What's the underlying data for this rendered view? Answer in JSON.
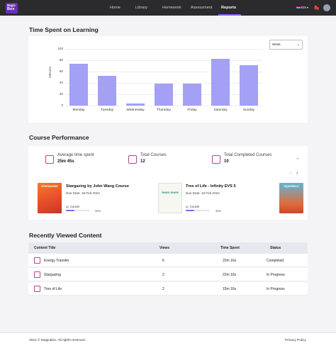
{
  "brand": {
    "logo_text_1": "Magic",
    "logo_text_2": "Box"
  },
  "nav": {
    "items": [
      {
        "label": "Home"
      },
      {
        "label": "Library"
      },
      {
        "label": "Homework"
      },
      {
        "label": "Assessment"
      },
      {
        "label": "Reports",
        "active": true
      }
    ],
    "language": "EN",
    "icons": {
      "flag": "uk-flag-icon",
      "lang_chevron": "chevron-down-icon",
      "bell": "bell-icon",
      "avatar": "avatar"
    }
  },
  "time_spent": {
    "section_title": "Time Spent on Learning",
    "period_select": "Week",
    "chart_data": {
      "type": "bar",
      "categories": [
        "Monday",
        "Tuesday",
        "Wednesday",
        "Thursday",
        "Friday",
        "Saturday",
        "Sunday"
      ],
      "values": [
        74,
        52,
        4,
        39,
        39,
        83,
        71
      ],
      "ylabel": "Minutes",
      "ylim": [
        0,
        100
      ],
      "yticks": [
        "0",
        "20",
        "40",
        "60",
        "80",
        "100"
      ],
      "bar_color": "#a3a0f5",
      "grid": true
    }
  },
  "course_performance": {
    "section_title": "Course Performance",
    "stats": [
      {
        "label": "Average time spent",
        "value": "25m 45s"
      },
      {
        "label": "Total Courses",
        "value": "12"
      },
      {
        "label": "Total Completed Courses",
        "value": "10"
      }
    ],
    "courses": [
      {
        "title": "Stargazing by John Wang Course",
        "due": "Due Date: 18 Feb 2022",
        "tag": "Course",
        "progress_pct": "35%",
        "progress": 0.35,
        "cover_text": "STARGAZING"
      },
      {
        "title": "Tree of Life - Infinity EVS 5",
        "due": "Due Date: 18 Feb 2022",
        "tag": "Course",
        "progress_pct": "35%",
        "progress": 0.35,
        "cover_text": "learn more"
      },
      {
        "cover_text": "SQUIRRELS"
      }
    ]
  },
  "recent": {
    "section_title": "Recently Viewed Content",
    "columns": [
      "Content Title",
      "Views",
      "Time Spent",
      "Status"
    ],
    "rows": [
      {
        "title": "Energy Transfer",
        "views": "6",
        "time": "22m 16s",
        "status": "Completed"
      },
      {
        "title": "Stargazing",
        "views": "2",
        "time": "22m 16s",
        "status": "In Progress"
      },
      {
        "title": "Tree of Life",
        "views": "2",
        "time": "15m 16s",
        "status": "In Progress"
      }
    ]
  },
  "footer": {
    "copyright": "2021 © MagicBox. All rights reserved.",
    "privacy": "Privacy Policy"
  },
  "colors": {
    "nav_bg": "#2b2b2e",
    "accent": "#8a5cf6",
    "icon_accent": "#c23f8e",
    "bar": "#a3a0f5"
  }
}
